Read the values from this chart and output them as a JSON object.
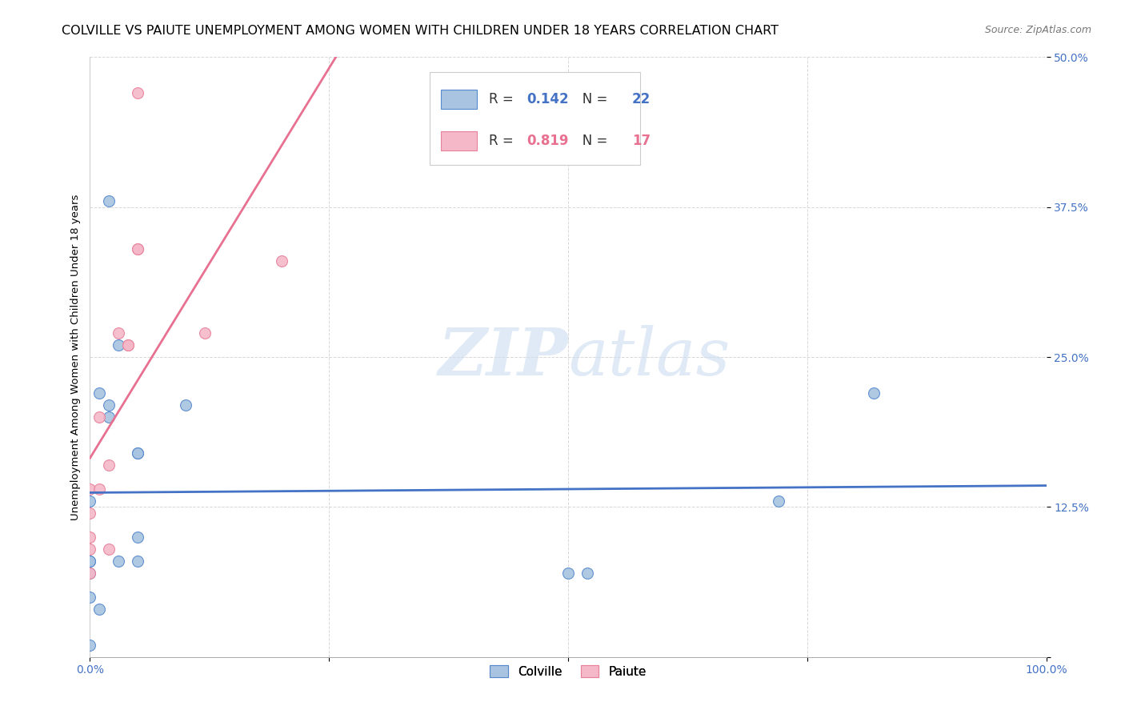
{
  "title": "COLVILLE VS PAIUTE UNEMPLOYMENT AMONG WOMEN WITH CHILDREN UNDER 18 YEARS CORRELATION CHART",
  "source": "Source: ZipAtlas.com",
  "ylabel": "Unemployment Among Women with Children Under 18 years",
  "colville_x": [
    0.0,
    0.0,
    0.0,
    0.0,
    0.0,
    0.0,
    0.01,
    0.01,
    0.02,
    0.02,
    0.02,
    0.03,
    0.03,
    0.05,
    0.05,
    0.05,
    0.05,
    0.1,
    0.5,
    0.52,
    0.72,
    0.82
  ],
  "colville_y": [
    0.01,
    0.05,
    0.07,
    0.08,
    0.08,
    0.13,
    0.04,
    0.22,
    0.21,
    0.38,
    0.2,
    0.26,
    0.08,
    0.17,
    0.17,
    0.1,
    0.08,
    0.21,
    0.07,
    0.07,
    0.13,
    0.22
  ],
  "paiute_x": [
    0.0,
    0.0,
    0.0,
    0.0,
    0.0,
    0.01,
    0.01,
    0.02,
    0.02,
    0.03,
    0.04,
    0.04,
    0.05,
    0.05,
    0.05,
    0.12,
    0.2
  ],
  "paiute_y": [
    0.07,
    0.09,
    0.1,
    0.12,
    0.14,
    0.14,
    0.2,
    0.09,
    0.16,
    0.27,
    0.26,
    0.26,
    0.34,
    0.34,
    0.47,
    0.27,
    0.33
  ],
  "colville_face_color": "#a8c4e0",
  "paiute_face_color": "#f4b8c8",
  "colville_edge_color": "#5588cc",
  "paiute_edge_color": "#e8809a",
  "colville_line_color": "#4472c4",
  "paiute_line_color": "#e87090",
  "colville_R": 0.142,
  "colville_N": 22,
  "paiute_R": 0.819,
  "paiute_N": 17,
  "xlim": [
    0.0,
    1.0
  ],
  "ylim": [
    0.0,
    0.5
  ],
  "xticks": [
    0.0,
    0.25,
    0.5,
    0.75,
    1.0
  ],
  "yticks": [
    0.0,
    0.125,
    0.25,
    0.375,
    0.5
  ],
  "watermark_zip": "ZIP",
  "watermark_atlas": "atlas",
  "background_color": "#ffffff",
  "grid_color": "#d8d8d8",
  "marker_size": 100,
  "title_fontsize": 11.5,
  "source_fontsize": 9,
  "axis_label_fontsize": 9.5,
  "tick_fontsize": 10,
  "legend_fontsize": 12
}
